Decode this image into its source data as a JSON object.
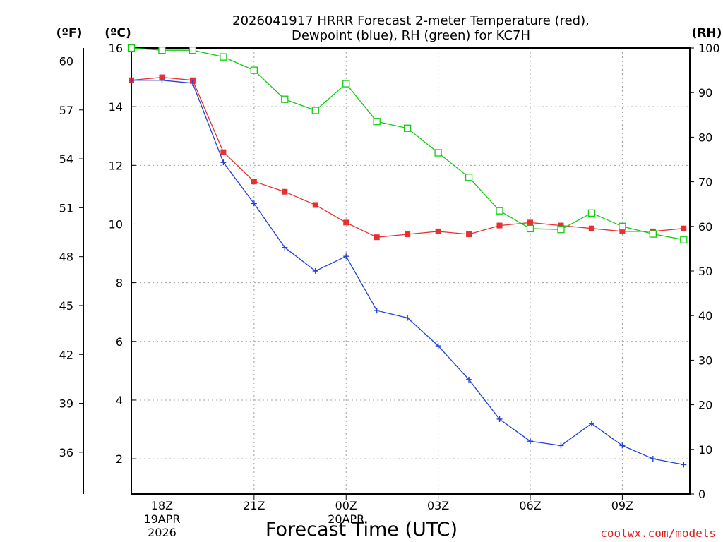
{
  "chart_data": {
    "type": "line",
    "title_line1": "2026041917 HRRR Forecast 2-meter Temperature (red),",
    "title_line2": "Dewpoint (blue), RH (green) for KC7H",
    "xlabel": "Forecast Time (UTC)",
    "credit": "coolwx.com/models",
    "left_unit_f": "(ºF)",
    "left_unit_c": "(ºC)",
    "right_unit": "(RH)",
    "x_hours": [
      17,
      18,
      19,
      20,
      21,
      22,
      23,
      24,
      25,
      26,
      27,
      28,
      29,
      30,
      31,
      32,
      33,
      34,
      35
    ],
    "x_range": [
      17,
      35.2
    ],
    "x_ticks": [
      {
        "hour": 18,
        "label": "18Z",
        "sub1": "19APR",
        "sub2": "2026"
      },
      {
        "hour": 21,
        "label": "21Z",
        "sub1": "",
        "sub2": ""
      },
      {
        "hour": 24,
        "label": "00Z",
        "sub1": "20APR",
        "sub2": ""
      },
      {
        "hour": 27,
        "label": "03Z",
        "sub1": "",
        "sub2": ""
      },
      {
        "hour": 30,
        "label": "06Z",
        "sub1": "",
        "sub2": ""
      },
      {
        "hour": 33,
        "label": "09Z",
        "sub1": "",
        "sub2": ""
      }
    ],
    "celsius_range": [
      0.8,
      16
    ],
    "celsius_ticks": [
      "2",
      "4",
      "6",
      "8",
      "10",
      "12",
      "14",
      "16"
    ],
    "fahrenheit_ticks": [
      "36",
      "39",
      "42",
      "45",
      "48",
      "51",
      "54",
      "57",
      "60"
    ],
    "rh_range": [
      0,
      100
    ],
    "rh_ticks": [
      "0",
      "10",
      "20",
      "30",
      "40",
      "50",
      "60",
      "70",
      "80",
      "90",
      "100"
    ],
    "series": [
      {
        "name": "Temperature",
        "color": "#e83030",
        "marker": "filled-square",
        "values": [
          14.9,
          15.0,
          14.9,
          12.45,
          11.45,
          11.1,
          10.65,
          10.05,
          9.55,
          9.65,
          9.75,
          9.65,
          9.95,
          10.05,
          9.95,
          9.85,
          9.75,
          9.75,
          9.85
        ]
      },
      {
        "name": "Dewpoint",
        "color": "#2040e0",
        "marker": "plus",
        "values": [
          14.9,
          14.9,
          14.8,
          12.1,
          10.7,
          9.2,
          8.4,
          8.9,
          7.05,
          6.8,
          5.85,
          4.7,
          3.35,
          2.6,
          2.45,
          3.2,
          2.45,
          2.0,
          1.8
        ]
      },
      {
        "name": "RH",
        "color": "#10cc10",
        "marker": "open-square",
        "axis": "rh",
        "values": [
          100,
          99.5,
          99.5,
          98.0,
          95.0,
          88.5,
          86.0,
          92.0,
          83.5,
          82.0,
          76.5,
          71.0,
          63.5,
          59.5,
          59.3,
          63.0,
          60.0,
          58.3,
          57.0
        ]
      }
    ]
  }
}
